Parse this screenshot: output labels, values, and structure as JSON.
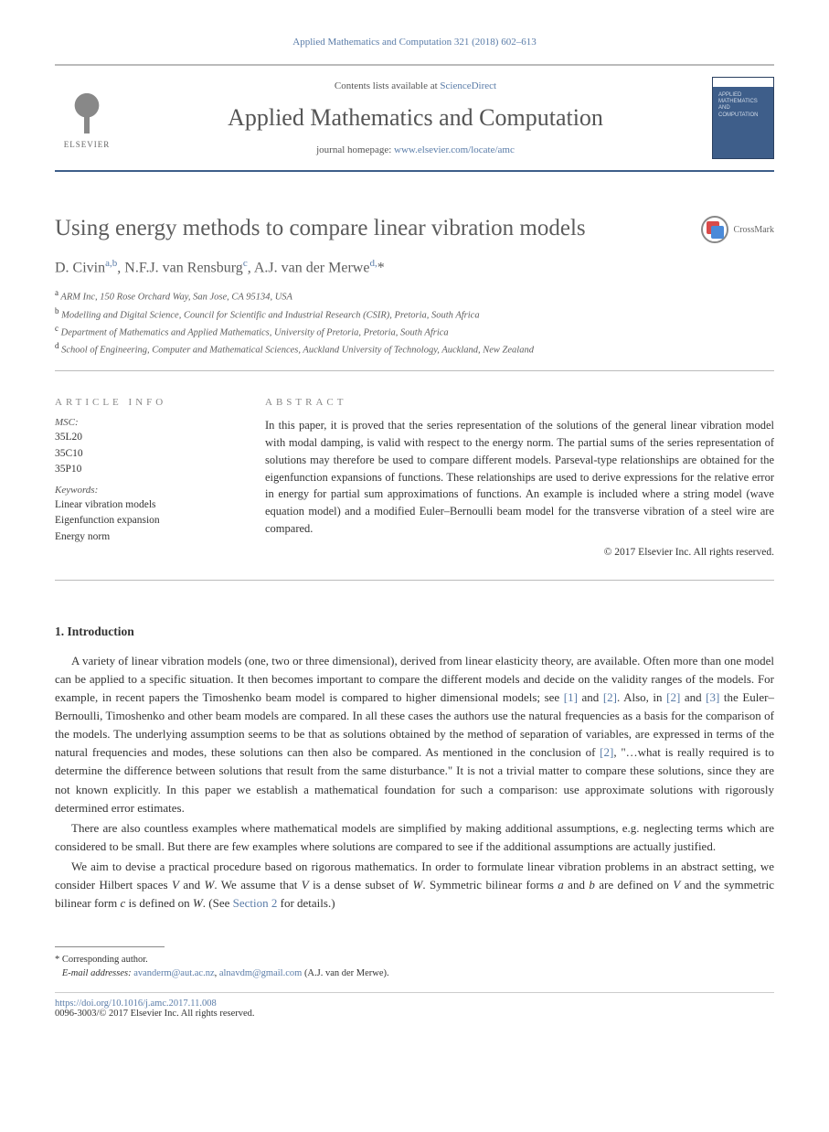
{
  "citation": "Applied Mathematics and Computation 321 (2018) 602–613",
  "header": {
    "publisher_name": "ELSEVIER",
    "contents_prefix": "Contents lists available at ",
    "contents_link": "ScienceDirect",
    "journal_title": "Applied Mathematics and Computation",
    "homepage_prefix": "journal homepage: ",
    "homepage_url": "www.elsevier.com/locate/amc",
    "cover_text": "APPLIED\nMATHEMATICS\nAND\nCOMPUTATION"
  },
  "crossmark_label": "CrossMark",
  "article": {
    "title": "Using energy methods to compare linear vibration models",
    "authors_html": "D. Civin<sup>a,b</sup>, N.F.J. van Rensburg<sup>c</sup>, A.J. van der Merwe<sup>d,</sup>*",
    "affiliations": [
      {
        "sup": "a",
        "text": "ARM Inc, 150 Rose Orchard Way, San Jose, CA 95134, USA"
      },
      {
        "sup": "b",
        "text": "Modelling and Digital Science, Council for Scientific and Industrial Research (CSIR), Pretoria, South Africa"
      },
      {
        "sup": "c",
        "text": "Department of Mathematics and Applied Mathematics, University of Pretoria, Pretoria, South Africa"
      },
      {
        "sup": "d",
        "text": "School of Engineering, Computer and Mathematical Sciences, Auckland University of Technology, Auckland, New Zealand"
      }
    ]
  },
  "info": {
    "heading": "article info",
    "msc_label": "MSC:",
    "msc": [
      "35L20",
      "35C10",
      "35P10"
    ],
    "keywords_label": "Keywords:",
    "keywords": [
      "Linear vibration models",
      "Eigenfunction expansion",
      "Energy norm"
    ]
  },
  "abstract": {
    "heading": "abstract",
    "text": "In this paper, it is proved that the series representation of the solutions of the general linear vibration model with modal damping, is valid with respect to the energy norm. The partial sums of the series representation of solutions may therefore be used to compare different models. Parseval-type relationships are obtained for the eigenfunction expansions of functions. These relationships are used to derive expressions for the relative error in energy for partial sum approximations of functions. An example is included where a string model (wave equation model) and a modified Euler–Bernoulli beam model for the transverse vibration of a steel wire are compared.",
    "copyright": "© 2017 Elsevier Inc. All rights reserved."
  },
  "sections": {
    "intro_heading": "1. Introduction",
    "intro_p1": "A variety of linear vibration models (one, two or three dimensional), derived from linear elasticity theory, are available. Often more than one model can be applied to a specific situation. It then becomes important to compare the different models and decide on the validity ranges of the models. For example, in recent papers the Timoshenko beam model is compared to higher dimensional models; see [1] and [2]. Also, in [2] and [3] the Euler–Bernoulli, Timoshenko and other beam models are compared. In all these cases the authors use the natural frequencies as a basis for the comparison of the models. The underlying assumption seems to be that as solutions obtained by the method of separation of variables, are expressed in terms of the natural frequencies and modes, these solutions can then also be compared. As mentioned in the conclusion of [2], \"…what is really required is to determine the difference between solutions that result from the same disturbance.\" It is not a trivial matter to compare these solutions, since they are not known explicitly. In this paper we establish a mathematical foundation for such a comparison: use approximate solutions with rigorously determined error estimates.",
    "intro_p2": "There are also countless examples where mathematical models are simplified by making additional assumptions, e.g. neglecting terms which are considered to be small. But there are few examples where solutions are compared to see if the additional assumptions are actually justified.",
    "intro_p3_pre": "We aim to devise a practical procedure based on rigorous mathematics. In order to formulate linear vibration problems in an abstract setting, we consider Hilbert spaces ",
    "intro_p3_mid1": " and ",
    "intro_p3_mid2": ". We assume that ",
    "intro_p3_mid3": " is a dense subset of ",
    "intro_p3_mid4": ". Symmetric bilinear forms ",
    "intro_p3_mid5": " and ",
    "intro_p3_mid6": " are defined on ",
    "intro_p3_mid7": " and the symmetric bilinear form ",
    "intro_p3_mid8": " is defined on ",
    "intro_p3_post": ". (See ",
    "intro_p3_sec": "Section 2",
    "intro_p3_end": " for details.)",
    "V": "V",
    "W": "W",
    "a": "a",
    "b": "b",
    "c": "c"
  },
  "footer": {
    "corr_symbol": "*",
    "corr_text": "Corresponding author.",
    "email_label": "E-mail addresses: ",
    "email1": "avanderm@aut.ac.nz",
    "email2": "alnavdm@gmail.com",
    "email_suffix": " (A.J. van der Merwe).",
    "doi": "https://doi.org/10.1016/j.amc.2017.11.008",
    "rights": "0096-3003/© 2017 Elsevier Inc. All rights reserved."
  },
  "colors": {
    "link": "#5a7ca8",
    "text": "#333333",
    "heading_gray": "#5d5d5d",
    "rule": "#bbbbbb",
    "cover_blue": "#3e5e8a"
  }
}
